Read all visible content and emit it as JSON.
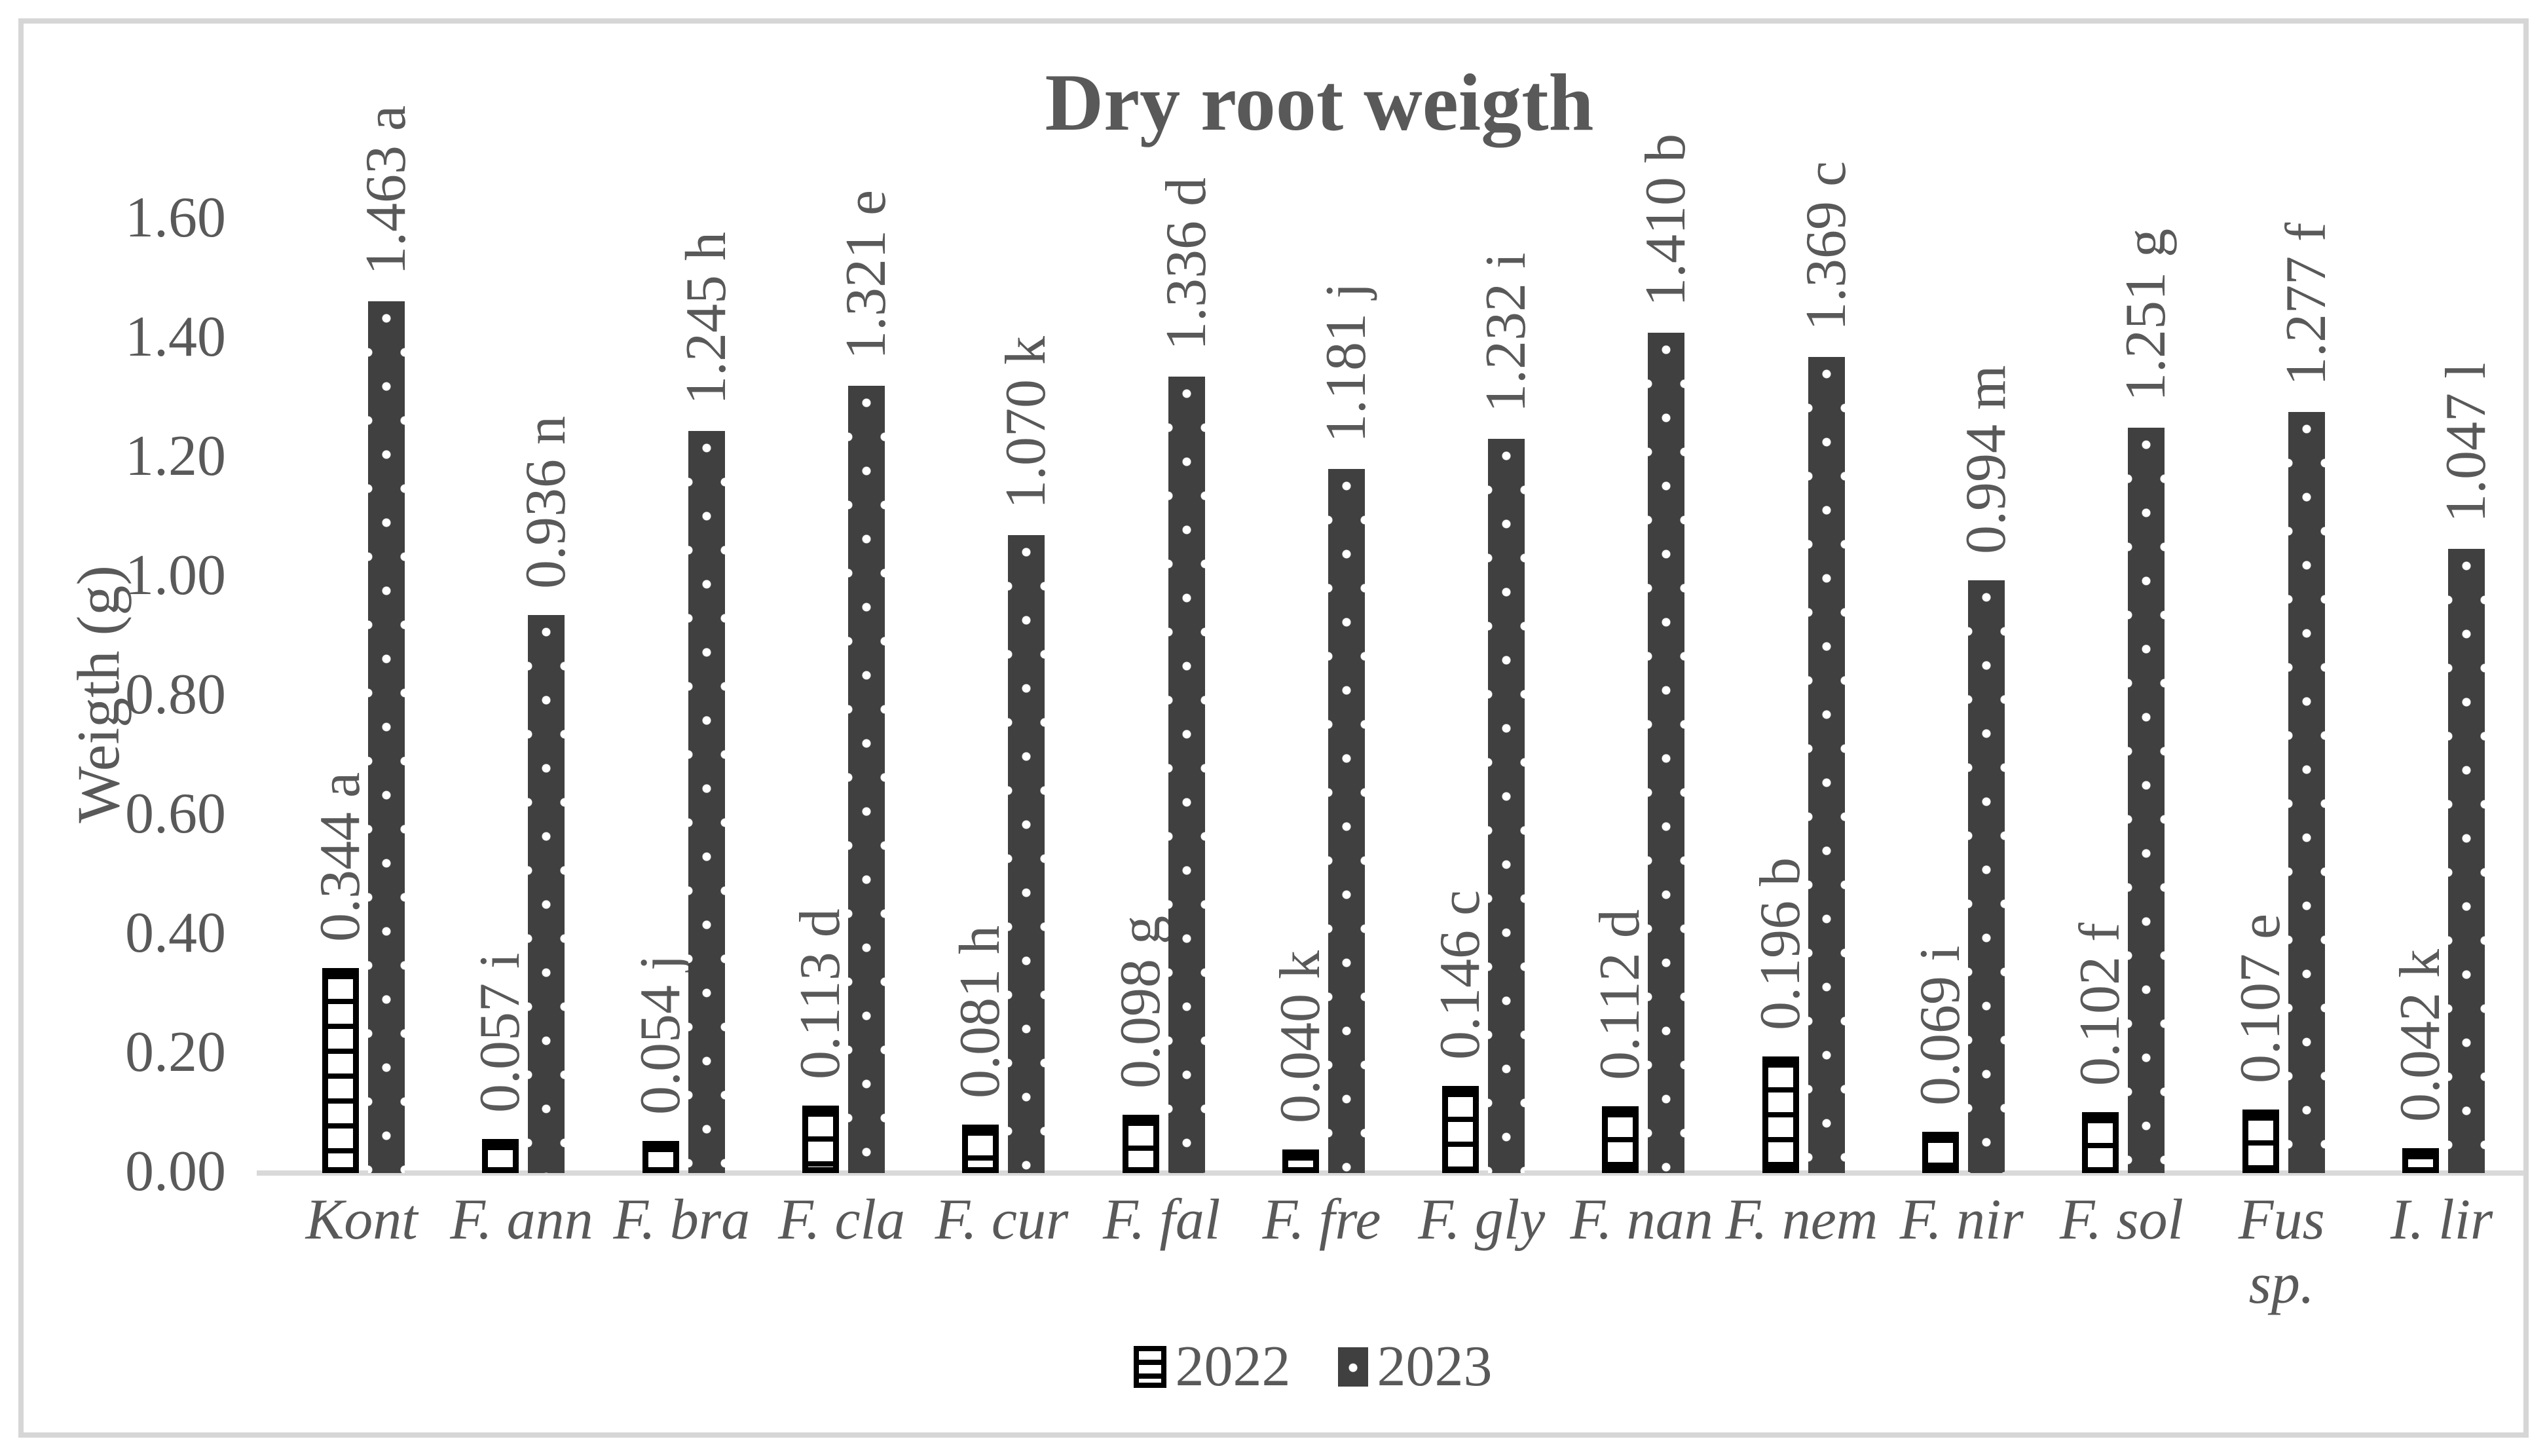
{
  "title": "Dry root weigth",
  "y_axis": {
    "label": "Weigth (g)",
    "ticks": [
      "0.00",
      "0.20",
      "0.40",
      "0.60",
      "0.80",
      "1.00",
      "1.20",
      "1.40",
      "1.60"
    ]
  },
  "legend": {
    "series_2022": "2022",
    "series_2023": "2023"
  },
  "colors": {
    "text": "#595959",
    "bar_dark": "#404040",
    "axis_line": "#d9d9d9",
    "background": "#ffffff"
  },
  "chart_data": {
    "type": "bar",
    "title": "Dry root weigth",
    "xlabel": "",
    "ylabel": "Weigth (g)",
    "ylim": [
      0,
      1.6
    ],
    "grid": false,
    "legend_position": "bottom",
    "categories": [
      "Kont",
      "F. ann",
      "F. bra",
      "F. cla",
      "F. cur",
      "F. fal",
      "F. fre",
      "F. gly",
      "F. nan",
      "F. nem",
      "F. nir",
      "F. sol",
      "Fus\nsp.",
      "I. lir"
    ],
    "series": [
      {
        "name": "2022",
        "pattern": "horizontal-stripes-white",
        "values": [
          0.344,
          0.057,
          0.054,
          0.113,
          0.081,
          0.098,
          0.04,
          0.146,
          0.112,
          0.196,
          0.069,
          0.102,
          0.107,
          0.042
        ],
        "labels": [
          "0.344 a",
          "0.057 i",
          "0.054 j",
          "0.113 d",
          "0.081 h",
          "0.098 g",
          "0.040 k",
          "0.146 c",
          "0.112 d",
          "0.196 b",
          "0.069 i",
          "0.102 f",
          "0.107 e",
          "0.042 k"
        ]
      },
      {
        "name": "2023",
        "pattern": "white-dots-on-dark",
        "values": [
          1.463,
          0.936,
          1.245,
          1.321,
          1.07,
          1.336,
          1.181,
          1.232,
          1.41,
          1.369,
          0.994,
          1.251,
          1.277,
          1.047
        ],
        "labels": [
          "1.463 a",
          "0.936 n",
          "1.245 h",
          "1.321 e",
          "1.070 k",
          "1.336 d",
          "1.181 j",
          "1.232 i",
          "1.410 b",
          "1.369 c",
          "0.994 m",
          "1.251 g",
          "1.277 f",
          "1.047 l"
        ]
      }
    ]
  }
}
